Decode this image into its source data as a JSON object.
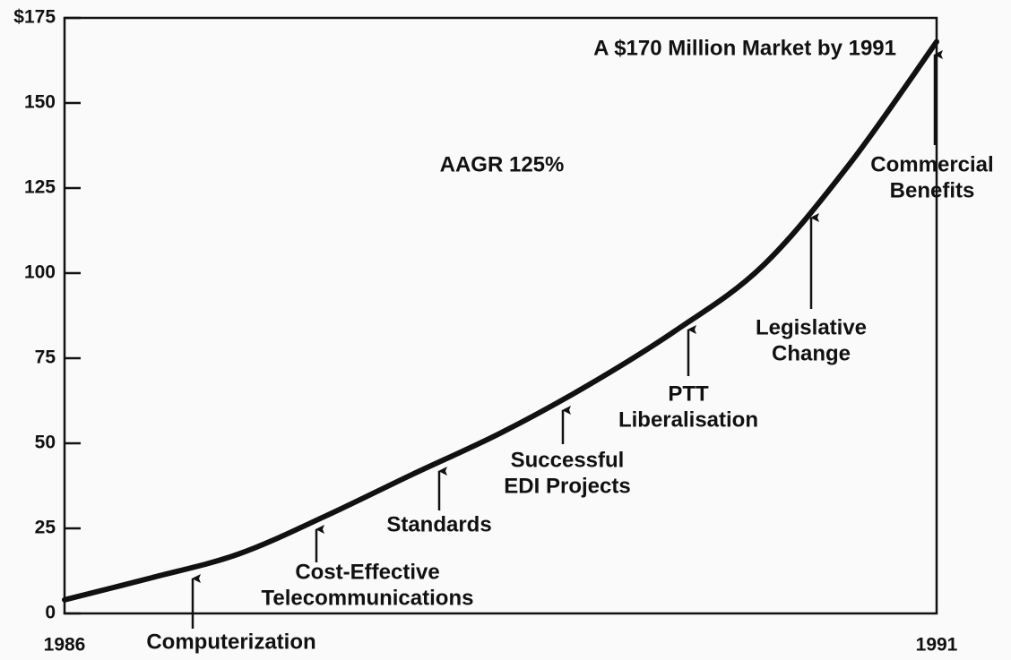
{
  "chart_data": {
    "type": "line",
    "x": [
      1986,
      1986.5,
      1987,
      1987.5,
      1988,
      1988.5,
      1989,
      1989.5,
      1990,
      1990.5,
      1991
    ],
    "series": [
      {
        "color": "#111111",
        "values": [
          4,
          10.5,
          17.5,
          28.7,
          41,
          53,
          67,
          83,
          102,
          132,
          168
        ]
      }
    ],
    "xlim": [
      1986,
      1991
    ],
    "xticks": [
      1986,
      1991
    ],
    "ylim": [
      0,
      175
    ],
    "yticks": [
      0,
      25,
      50,
      75,
      100,
      125,
      150,
      {
        "value": 175,
        "label": "$175"
      }
    ],
    "annotations": [
      [
        "A $170 Million Market by 1991"
      ],
      [
        "AAGR 125%"
      ],
      [
        "Commercial",
        "Benefits"
      ],
      [
        "Legislative",
        "Change"
      ],
      [
        "PTT",
        "Liberalisation"
      ],
      [
        "Successful",
        "EDI Projects"
      ],
      [
        "Standards"
      ],
      [
        "Cost-Effective",
        "Telecommunications"
      ],
      [
        "Computerization"
      ]
    ]
  }
}
